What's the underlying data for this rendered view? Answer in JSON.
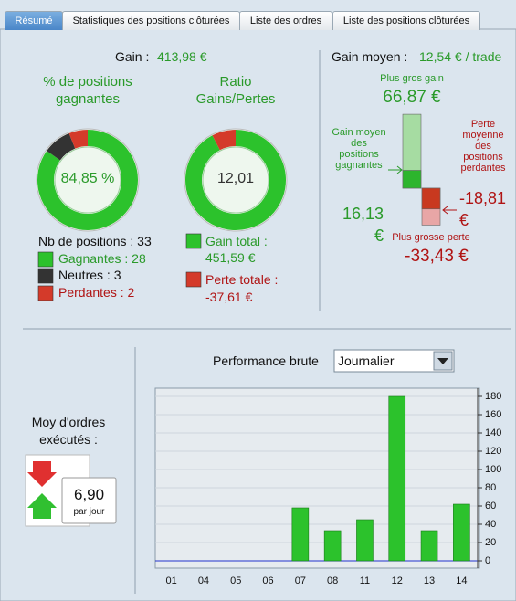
{
  "tabs": [
    "Résumé",
    "Statistiques des positions clôturées",
    "Liste des ordres",
    "Liste des positions clôturées"
  ],
  "gain_label": "Gain :",
  "gain_value": "413,98 €",
  "orders": {
    "title": "Moy d'ordres exécutés :",
    "value": "6,90",
    "unit": "par jour"
  },
  "chart_data": [
    {
      "type": "donut",
      "title": "% de positions gagnantes",
      "center_label": "84,85 %",
      "header": "Nb de positions : 33",
      "categories": [
        "Gagnantes :",
        "Neutres :",
        "Perdantes :"
      ],
      "values": [
        28,
        3,
        2
      ],
      "colors": [
        "#2cc22c",
        "#333333",
        "#d43a2a"
      ]
    },
    {
      "type": "donut",
      "title": "Ratio Gains/Pertes",
      "center_label": "12,01",
      "categories": [
        "Gain total :",
        "Perte totale :"
      ],
      "values": [
        451.59,
        -37.61
      ],
      "value_labels": [
        "451,59 €",
        "-37,61 €"
      ],
      "colors": [
        "#2cc22c",
        "#d43a2a"
      ]
    },
    {
      "type": "range_bar",
      "title": "Gain moyen :",
      "subtitle": "12,54 € / trade",
      "categories": [
        "Plus gros gain",
        "Gain moyen des positions gagnantes",
        "Perte moyenne des positions perdantes",
        "Plus grosse perte"
      ],
      "values": [
        66.87,
        16.13,
        -18.81,
        -33.43
      ],
      "value_labels": [
        "66,87 €",
        "16,13 €",
        "-18,81 €",
        "-33,43 €"
      ],
      "colors": [
        "#a6dca2",
        "#2db52d",
        "#c8391f",
        "#e8a6a6"
      ]
    },
    {
      "type": "bar",
      "title": "Performance brute",
      "period": "Journalier",
      "categories": [
        "01",
        "04",
        "05",
        "06",
        "07",
        "08",
        "11",
        "12",
        "13",
        "14"
      ],
      "values": [
        0,
        0,
        0,
        0,
        58,
        33,
        45,
        180,
        33,
        62
      ],
      "color": "#2cc22c",
      "ylim": [
        -8,
        189
      ],
      "yticks": [
        0,
        20,
        40,
        60,
        80,
        100,
        120,
        140,
        160,
        180
      ],
      "grid": true
    }
  ]
}
